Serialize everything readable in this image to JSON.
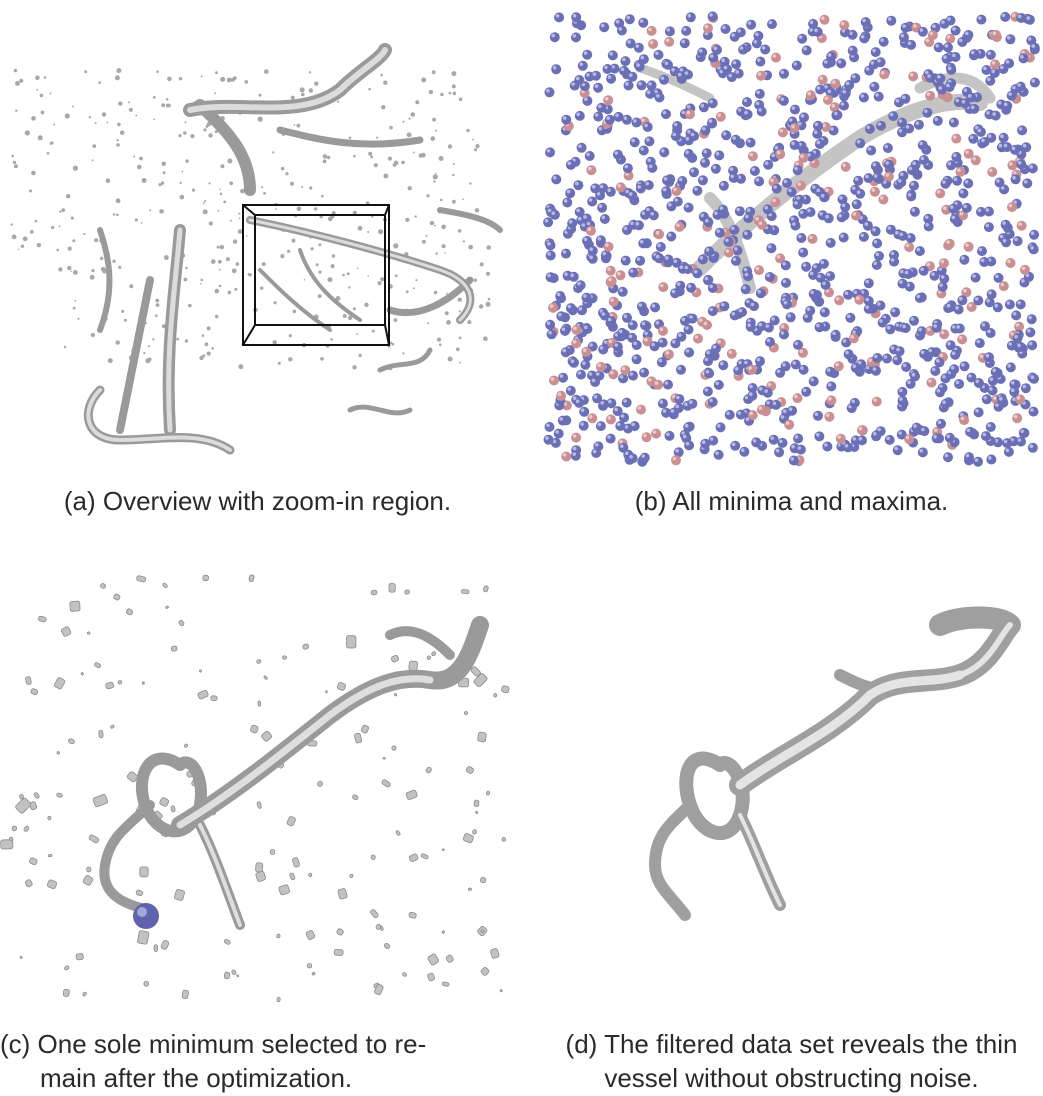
{
  "figure": {
    "panels": [
      {
        "id": "a",
        "caption": "(a) Overview with zoom-in region.",
        "icon": "vessel-overview-render"
      },
      {
        "id": "b",
        "caption": "(b) All minima and maxima.",
        "icon": "minima-maxima-spheres-render"
      },
      {
        "id": "c",
        "caption_lines": [
          "(c) One sole minimum selected to re-",
          "main after the optimization."
        ],
        "icon": "single-minimum-render"
      },
      {
        "id": "d",
        "caption_lines": [
          "(d) The filtered data set reveals the thin",
          "vessel without obstructing noise."
        ],
        "icon": "filtered-vessel-render"
      }
    ],
    "colors": {
      "surface": "#c9c9c9",
      "surface_dark": "#8c8c8c",
      "minima": "#6b6fb5",
      "maxima": "#c98f93",
      "zoom_box": "#111111"
    }
  }
}
